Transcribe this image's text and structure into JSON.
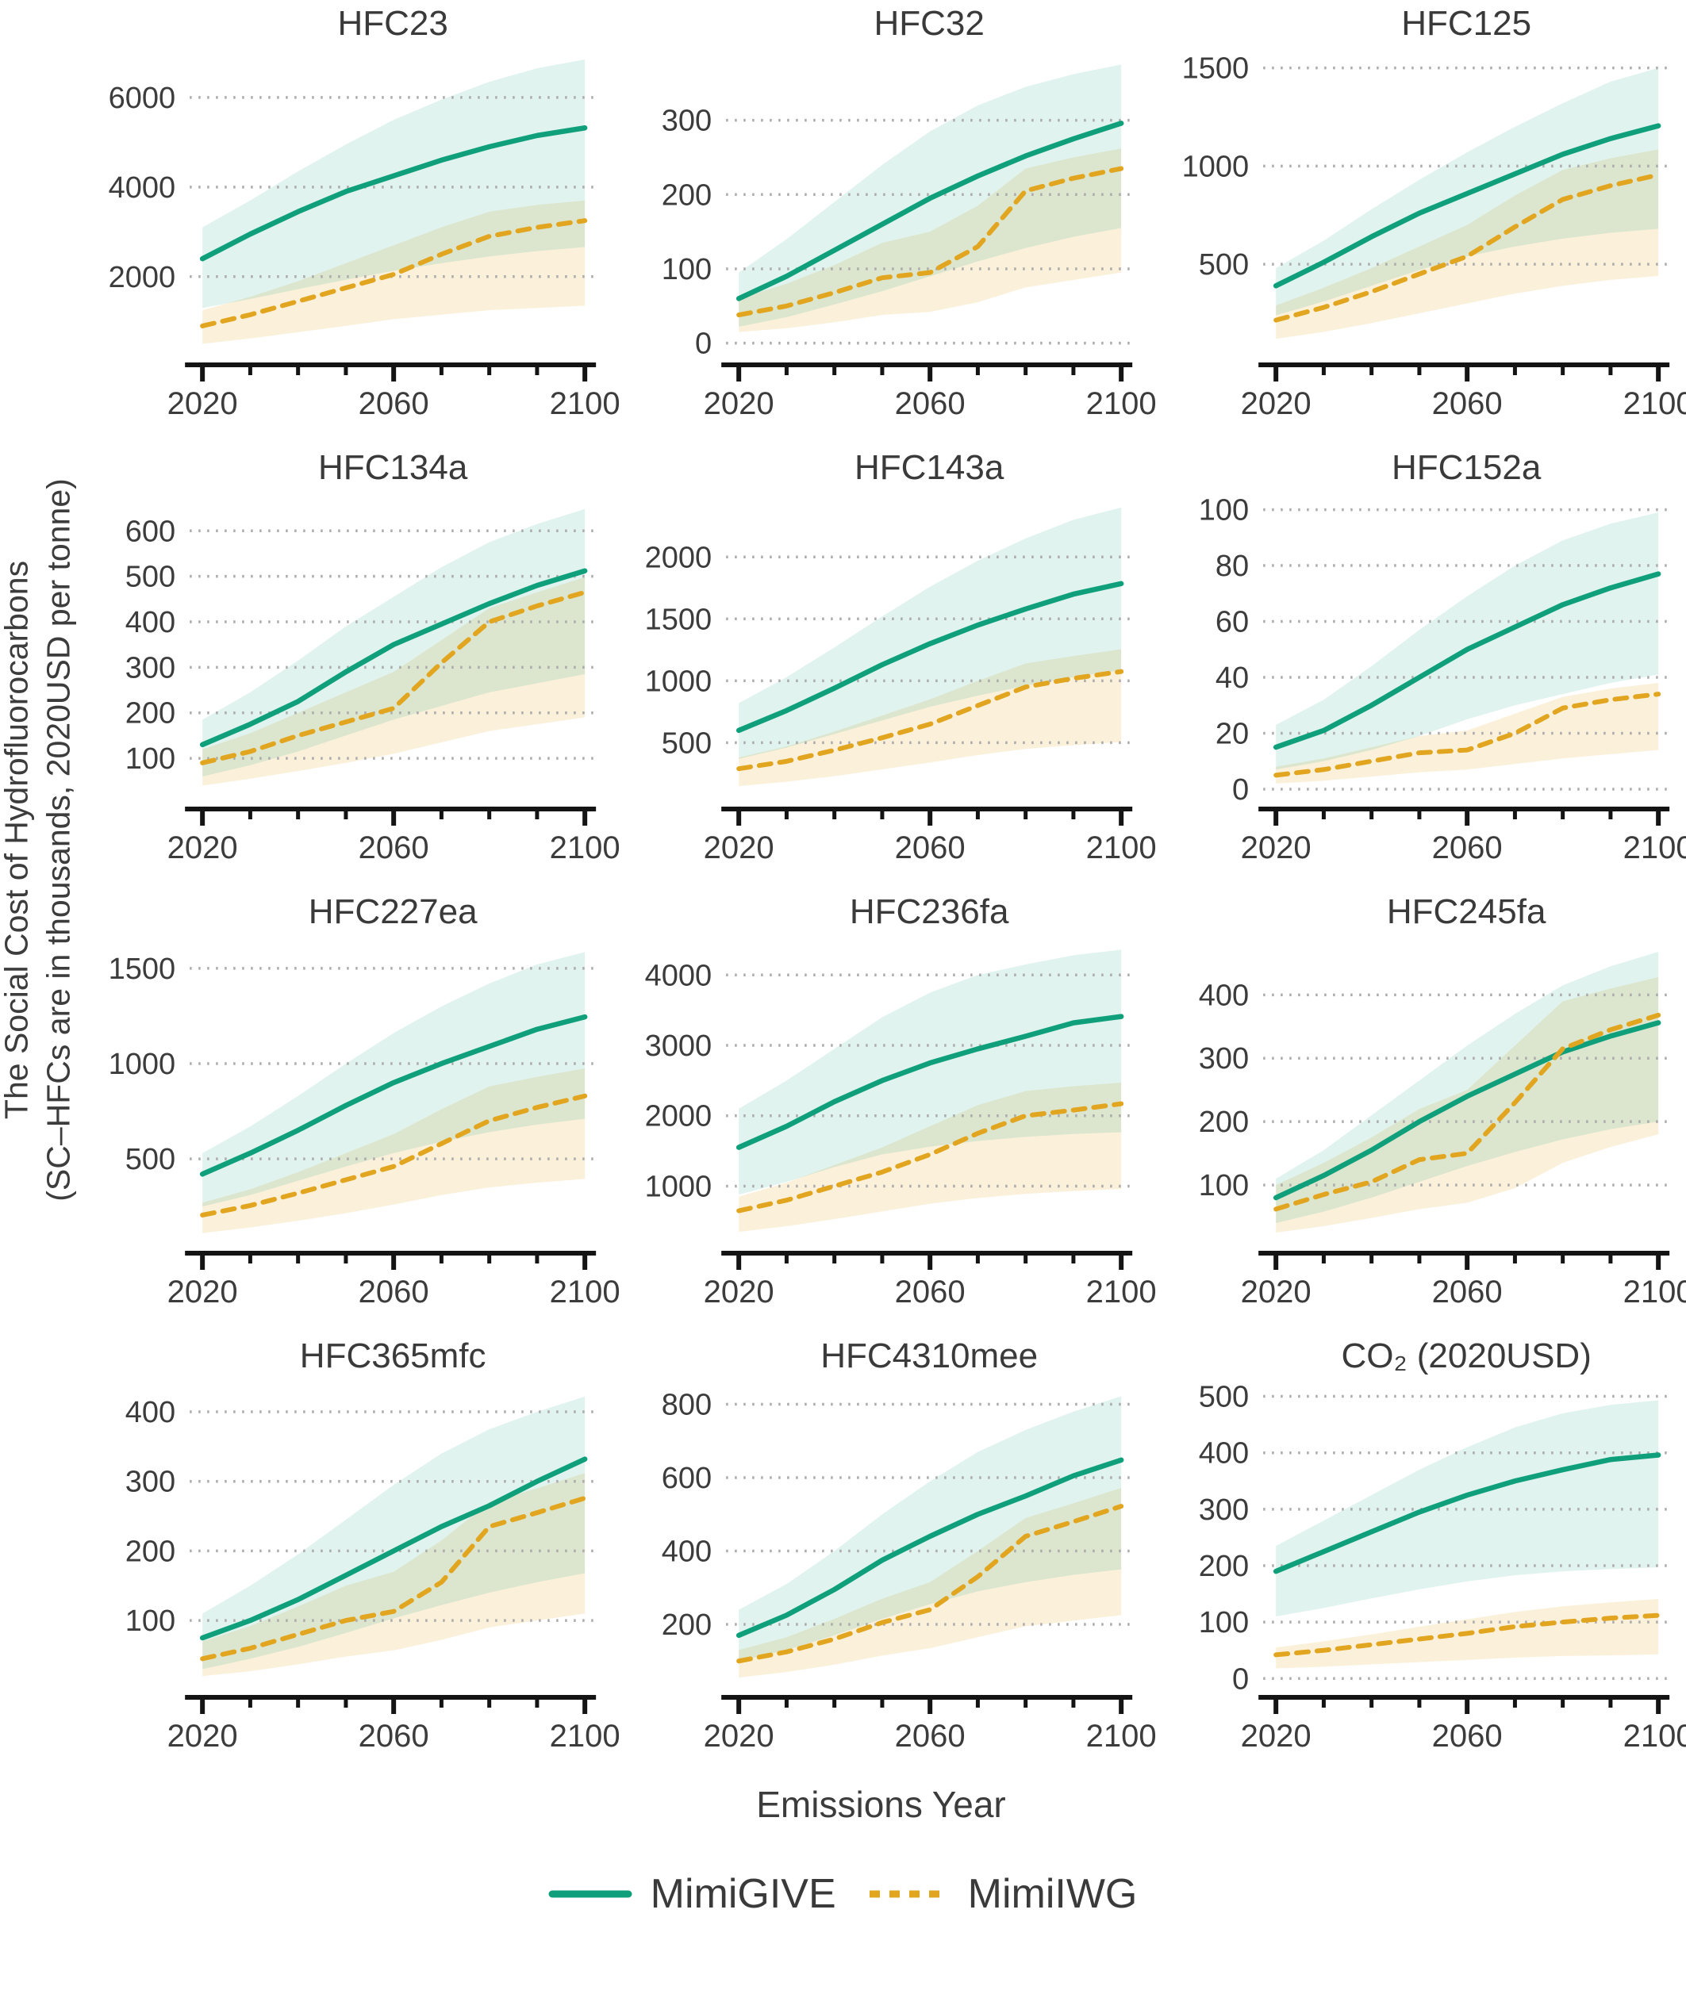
{
  "figure": {
    "x_axis_label": "Emissions Year",
    "y_axis_label_line1": "The Social Cost of Hydrofluorocarbons",
    "y_axis_label_line2": "(SC–HFCs are in thousands, 2020USD per tonne)"
  },
  "legend": {
    "items": [
      {
        "label": "MimiGIVE",
        "style": "solid",
        "color": "#0fa07b"
      },
      {
        "label": "MimiIWG",
        "style": "dashed",
        "color": "#e2a51f"
      }
    ]
  },
  "colors": {
    "mimigive_line": "#0fa07b",
    "mimiiwg_line": "#e2a51f",
    "mimigive_band": "#0fa07b",
    "mimiiwg_band": "#e8a820",
    "gridline": "#ababab",
    "axis": "#141414",
    "text": "#3c3c3c"
  },
  "chart_data": {
    "type": "line",
    "x_label": "Emissions Year",
    "x": [
      2020,
      2030,
      2040,
      2050,
      2060,
      2070,
      2080,
      2090,
      2100
    ],
    "x_major_ticks": [
      2020,
      2060,
      2100
    ],
    "series_meta": [
      {
        "name": "MimiGIVE",
        "style": "solid",
        "color": "#0fa07b"
      },
      {
        "name": "MimiIWG",
        "style": "dashed",
        "color": "#e2a51f"
      }
    ],
    "panels": [
      {
        "title": "HFC23",
        "ymin": 350,
        "ymax": 6900,
        "yticks": [
          2000,
          4000,
          6000
        ],
        "give": {
          "mean": [
            2400,
            2950,
            3450,
            3900,
            4250,
            4600,
            4900,
            5150,
            5320
          ],
          "lo": [
            1300,
            1500,
            1720,
            1930,
            2130,
            2300,
            2450,
            2570,
            2660
          ],
          "hi": [
            3100,
            3700,
            4350,
            4950,
            5500,
            5950,
            6350,
            6650,
            6850
          ]
        },
        "iwg": {
          "mean": [
            900,
            1150,
            1450,
            1750,
            2050,
            2500,
            2900,
            3100,
            3250
          ],
          "lo": [
            500,
            620,
            760,
            900,
            1050,
            1150,
            1250,
            1300,
            1350
          ],
          "hi": [
            1250,
            1550,
            1900,
            2300,
            2700,
            3100,
            3450,
            3600,
            3700
          ]
        }
      },
      {
        "title": "HFC32",
        "ymin": -10,
        "ymax": 385,
        "yticks": [
          0,
          100,
          200,
          300
        ],
        "give": {
          "mean": [
            60,
            90,
            125,
            160,
            195,
            225,
            252,
            275,
            296
          ],
          "lo": [
            22,
            35,
            52,
            70,
            90,
            110,
            128,
            143,
            155
          ],
          "hi": [
            95,
            140,
            190,
            240,
            285,
            320,
            345,
            362,
            375
          ]
        },
        "iwg": {
          "mean": [
            38,
            50,
            68,
            88,
            95,
            130,
            205,
            222,
            235
          ],
          "lo": [
            15,
            20,
            28,
            38,
            42,
            55,
            75,
            85,
            95
          ],
          "hi": [
            60,
            80,
            105,
            135,
            150,
            185,
            235,
            250,
            262
          ]
        }
      },
      {
        "title": "HFC125",
        "ymin": 60,
        "ymax": 1555,
        "yticks": [
          500,
          1000,
          1500
        ],
        "give": {
          "mean": [
            390,
            510,
            640,
            760,
            860,
            960,
            1060,
            1140,
            1205
          ],
          "lo": [
            240,
            310,
            390,
            470,
            540,
            590,
            630,
            660,
            680
          ],
          "hi": [
            480,
            620,
            780,
            930,
            1070,
            1200,
            1320,
            1430,
            1500
          ]
        },
        "iwg": {
          "mean": [
            215,
            280,
            360,
            450,
            540,
            690,
            830,
            900,
            955
          ],
          "lo": [
            120,
            155,
            200,
            250,
            300,
            350,
            390,
            420,
            440
          ],
          "hi": [
            290,
            380,
            480,
            590,
            700,
            850,
            980,
            1040,
            1085
          ]
        }
      },
      {
        "title": "HFC134a",
        "ymin": 20,
        "ymax": 665,
        "yticks": [
          100,
          200,
          300,
          400,
          500,
          600
        ],
        "give": {
          "mean": [
            130,
            175,
            225,
            290,
            350,
            395,
            440,
            480,
            512
          ],
          "lo": [
            60,
            85,
            115,
            150,
            185,
            215,
            245,
            265,
            285
          ],
          "hi": [
            185,
            245,
            315,
            390,
            455,
            520,
            575,
            615,
            648
          ]
        },
        "iwg": {
          "mean": [
            90,
            115,
            150,
            180,
            210,
            310,
            400,
            435,
            465
          ],
          "lo": [
            40,
            55,
            72,
            90,
            110,
            135,
            160,
            175,
            190
          ],
          "hi": [
            120,
            155,
            200,
            245,
            290,
            360,
            430,
            465,
            498
          ]
        }
      },
      {
        "title": "HFC143a",
        "ymin": 80,
        "ymax": 2450,
        "yticks": [
          500,
          1000,
          1500,
          2000
        ],
        "give": {
          "mean": [
            600,
            760,
            940,
            1130,
            1300,
            1450,
            1580,
            1700,
            1785
          ],
          "lo": [
            370,
            460,
            570,
            680,
            790,
            880,
            960,
            1030,
            1085
          ],
          "hi": [
            820,
            1030,
            1270,
            1520,
            1760,
            1970,
            2150,
            2300,
            2400
          ]
        },
        "iwg": {
          "mean": [
            290,
            350,
            440,
            540,
            650,
            800,
            950,
            1020,
            1075
          ],
          "lo": [
            150,
            185,
            230,
            285,
            340,
            400,
            450,
            480,
            505
          ],
          "hi": [
            380,
            470,
            590,
            720,
            850,
            1000,
            1140,
            1200,
            1255
          ]
        }
      },
      {
        "title": "HFC152a",
        "ymin": -2,
        "ymax": 103,
        "yticks": [
          0,
          20,
          40,
          60,
          80,
          100
        ],
        "give": {
          "mean": [
            15,
            21,
            30,
            40,
            50,
            58,
            66,
            72,
            77
          ],
          "lo": [
            7,
            10,
            14,
            19,
            25,
            30,
            34,
            38,
            41
          ],
          "hi": [
            23,
            32,
            44,
            57,
            69,
            80,
            89,
            95,
            99
          ]
        },
        "iwg": {
          "mean": [
            5,
            7,
            10,
            13,
            14,
            20,
            29,
            32,
            34
          ],
          "lo": [
            2,
            3,
            4.5,
            6,
            7,
            9,
            11,
            12.5,
            14
          ],
          "hi": [
            8,
            11,
            15,
            19,
            21,
            27,
            33,
            36,
            38
          ]
        }
      },
      {
        "title": "HFC227ea",
        "ymin": 80,
        "ymax": 1620,
        "yticks": [
          500,
          1000,
          1500
        ],
        "give": {
          "mean": [
            420,
            530,
            650,
            780,
            900,
            1000,
            1090,
            1180,
            1245
          ],
          "lo": [
            250,
            310,
            385,
            460,
            530,
            590,
            640,
            680,
            710
          ],
          "hi": [
            530,
            670,
            830,
            1000,
            1160,
            1300,
            1420,
            1520,
            1585
          ]
        },
        "iwg": {
          "mean": [
            205,
            255,
            320,
            390,
            460,
            580,
            700,
            770,
            830
          ],
          "lo": [
            110,
            140,
            175,
            215,
            260,
            310,
            350,
            375,
            395
          ],
          "hi": [
            270,
            340,
            430,
            530,
            630,
            760,
            880,
            930,
            975
          ]
        }
      },
      {
        "title": "HFC236fa",
        "ymin": 250,
        "ymax": 4420,
        "yticks": [
          1000,
          2000,
          3000,
          4000
        ],
        "give": {
          "mean": [
            1550,
            1850,
            2200,
            2500,
            2750,
            2950,
            3130,
            3320,
            3410
          ],
          "lo": [
            880,
            1060,
            1270,
            1450,
            1560,
            1640,
            1700,
            1740,
            1765
          ],
          "hi": [
            2100,
            2500,
            2950,
            3400,
            3750,
            4000,
            4150,
            4280,
            4360
          ]
        },
        "iwg": {
          "mean": [
            650,
            800,
            1000,
            1200,
            1450,
            1750,
            2000,
            2080,
            2170
          ],
          "lo": [
            350,
            430,
            530,
            640,
            750,
            830,
            890,
            930,
            960
          ],
          "hi": [
            850,
            1050,
            1300,
            1550,
            1850,
            2150,
            2350,
            2420,
            2470
          ]
        }
      },
      {
        "title": "HFC245fa",
        "ymin": 15,
        "ymax": 478,
        "yticks": [
          100,
          200,
          300,
          400
        ],
        "give": {
          "mean": [
            80,
            115,
            155,
            200,
            240,
            275,
            310,
            335,
            356
          ],
          "lo": [
            40,
            58,
            80,
            105,
            130,
            152,
            172,
            188,
            200
          ],
          "hi": [
            110,
            155,
            210,
            265,
            320,
            370,
            415,
            445,
            468
          ]
        },
        "iwg": {
          "mean": [
            62,
            85,
            105,
            140,
            150,
            230,
            315,
            345,
            368
          ],
          "lo": [
            25,
            35,
            48,
            62,
            72,
            95,
            135,
            160,
            180
          ],
          "hi": [
            100,
            135,
            175,
            220,
            250,
            320,
            390,
            410,
            428
          ]
        }
      },
      {
        "title": "HFC365mfc",
        "ymin": 10,
        "ymax": 432,
        "yticks": [
          100,
          200,
          300,
          400
        ],
        "give": {
          "mean": [
            75,
            100,
            130,
            165,
            200,
            235,
            265,
            300,
            332
          ],
          "lo": [
            30,
            45,
            62,
            82,
            103,
            122,
            140,
            155,
            168
          ],
          "hi": [
            110,
            150,
            195,
            245,
            295,
            340,
            375,
            400,
            422
          ]
        },
        "iwg": {
          "mean": [
            45,
            60,
            80,
            100,
            113,
            155,
            235,
            255,
            276
          ],
          "lo": [
            20,
            27,
            37,
            48,
            57,
            72,
            90,
            100,
            110
          ],
          "hi": [
            70,
            92,
            120,
            150,
            170,
            215,
            270,
            290,
            312
          ]
        }
      },
      {
        "title": "HFC4310mee",
        "ymin": 40,
        "ymax": 840,
        "yticks": [
          200,
          400,
          600,
          800
        ],
        "give": {
          "mean": [
            170,
            225,
            295,
            375,
            440,
            500,
            550,
            605,
            648
          ],
          "lo": [
            100,
            130,
            170,
            215,
            255,
            290,
            315,
            335,
            350
          ],
          "hi": [
            240,
            310,
            400,
            500,
            590,
            670,
            730,
            780,
            822
          ]
        },
        "iwg": {
          "mean": [
            100,
            125,
            160,
            205,
            240,
            330,
            440,
            480,
            522
          ],
          "lo": [
            55,
            70,
            90,
            115,
            135,
            165,
            195,
            210,
            225
          ],
          "hi": [
            130,
            165,
            215,
            270,
            315,
            400,
            490,
            530,
            572
          ]
        }
      },
      {
        "title": "CO₂ (2020USD)",
        "ymin": -8,
        "ymax": 512,
        "yticks": [
          0,
          100,
          200,
          300,
          400,
          500
        ],
        "give": {
          "mean": [
            190,
            225,
            260,
            295,
            325,
            350,
            370,
            388,
            396
          ],
          "lo": [
            110,
            125,
            142,
            158,
            172,
            183,
            190,
            194,
            197
          ],
          "hi": [
            235,
            280,
            325,
            370,
            410,
            445,
            470,
            485,
            493
          ]
        },
        "iwg": {
          "mean": [
            42,
            50,
            60,
            70,
            80,
            92,
            100,
            107,
            112
          ],
          "lo": [
            18,
            21,
            25,
            29,
            33,
            37,
            40,
            41,
            43
          ],
          "hi": [
            55,
            66,
            78,
            92,
            105,
            118,
            128,
            135,
            141
          ]
        }
      }
    ]
  }
}
